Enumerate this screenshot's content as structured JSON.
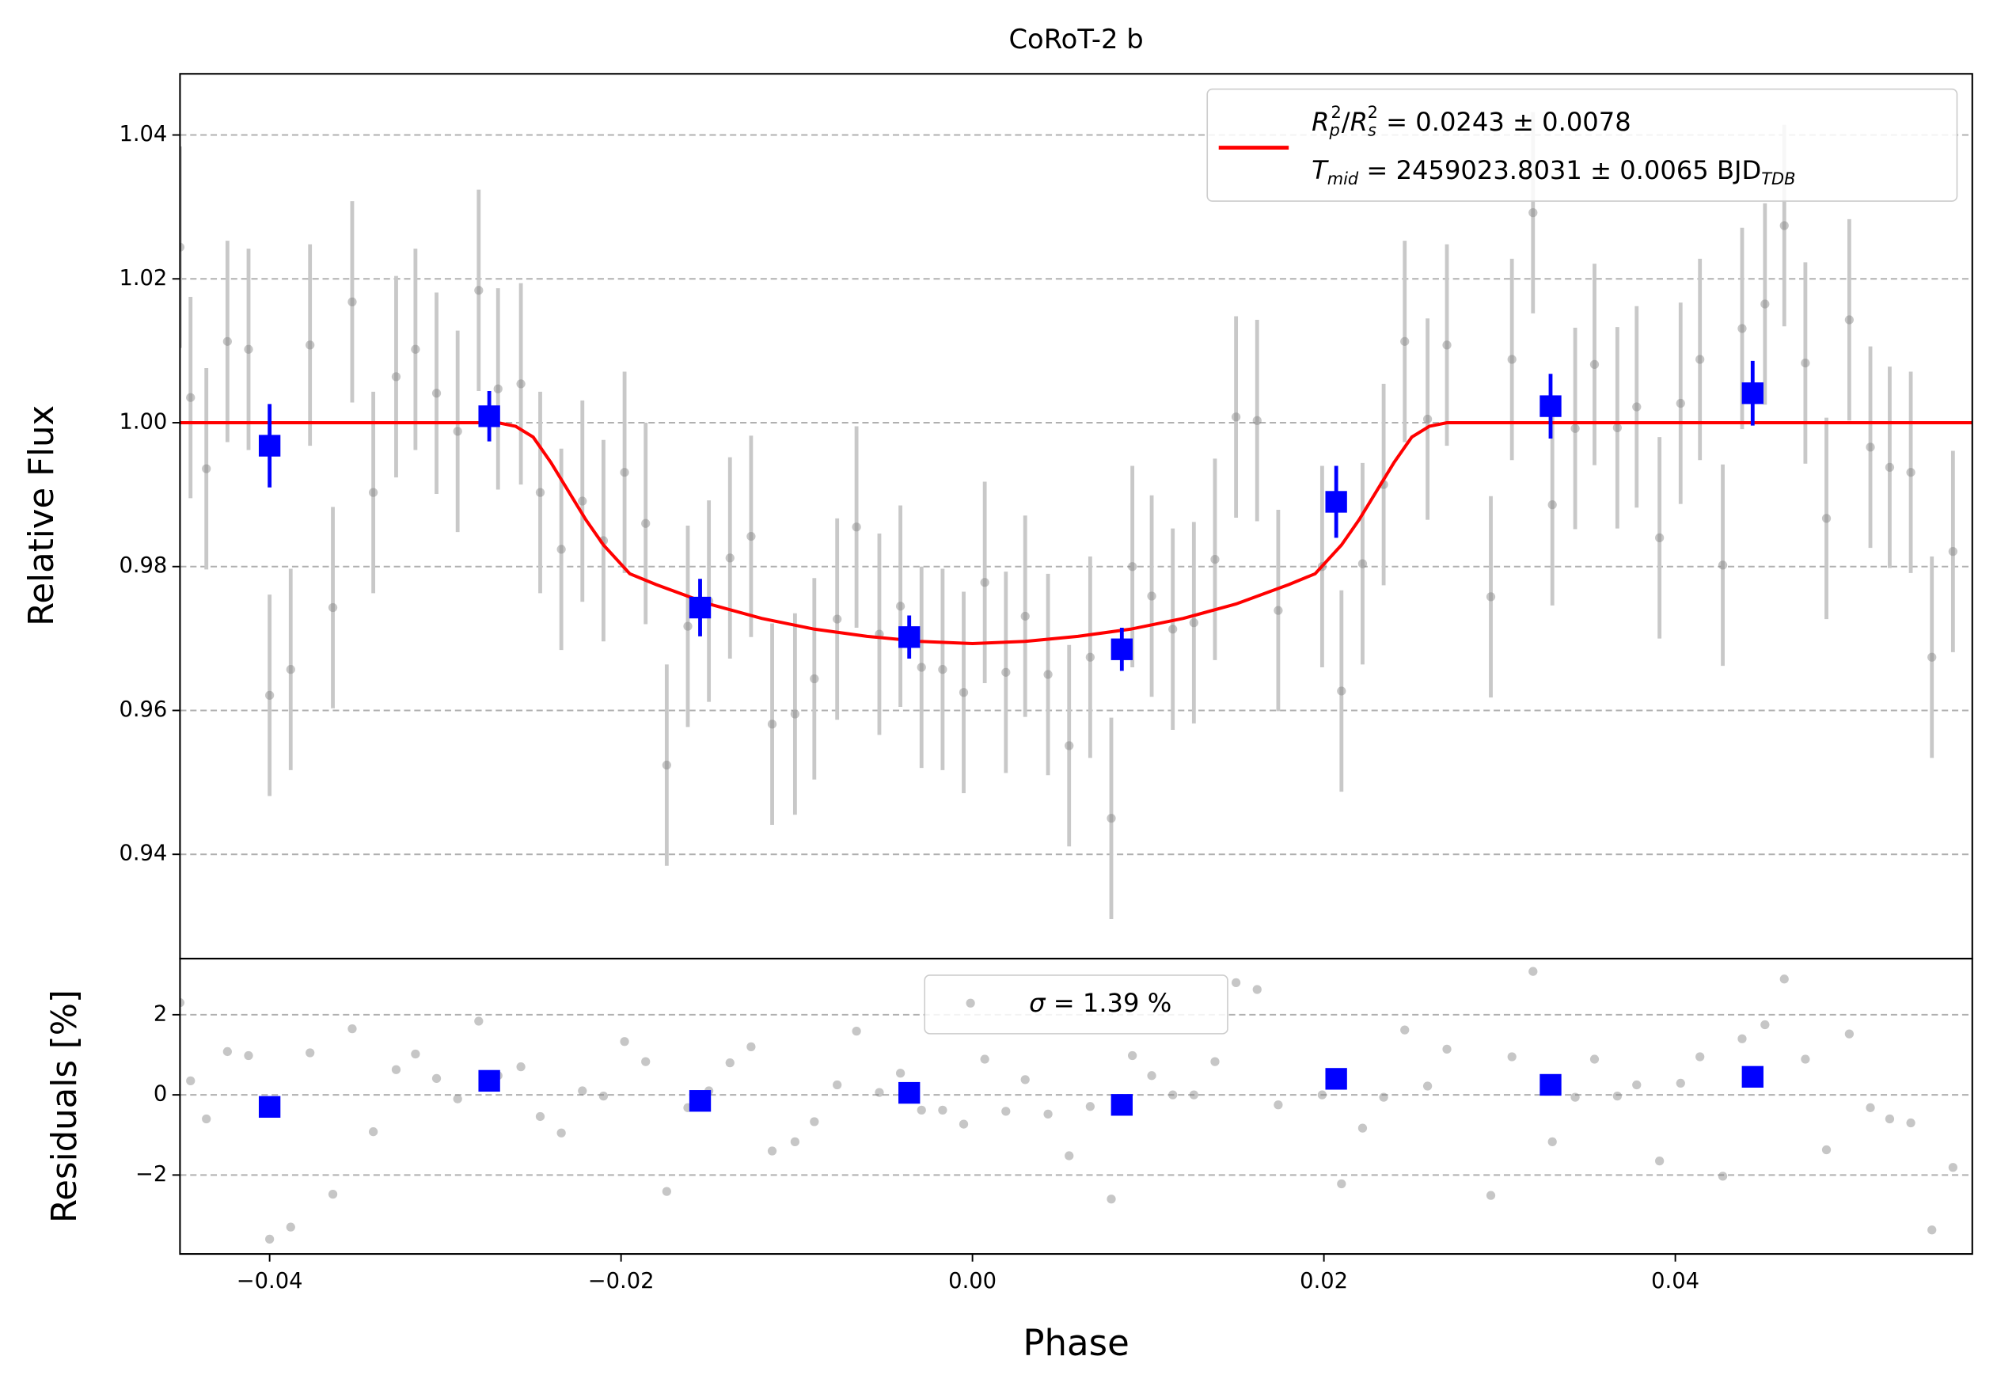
{
  "chart_data": [
    {
      "type": "scatter",
      "title": "CoRoT-2 b",
      "ylabel": "Relative Flux",
      "xlim": [
        -0.0451,
        0.0569
      ],
      "ylim": [
        0.9255,
        1.0485
      ],
      "yticks": [
        0.94,
        0.96,
        0.98,
        {
          "value": 1.0,
          "label": "1.00"
        },
        1.02,
        1.04
      ],
      "grid": true,
      "legend_position": "upper right",
      "series": [
        {
          "color": "#808080",
          "error": 0.014,
          "x": [
            -0.0451,
            -0.0445,
            -0.0436,
            -0.0424,
            -0.0412,
            -0.04,
            -0.0388,
            -0.0377,
            -0.0364,
            -0.0353,
            -0.0341,
            -0.0328,
            -0.0317,
            -0.0305,
            -0.0293,
            -0.0281,
            -0.027,
            -0.0257,
            -0.0246,
            -0.0234,
            -0.0222,
            -0.021,
            -0.0198,
            -0.0186,
            -0.0174,
            -0.0162,
            -0.015,
            -0.0138,
            -0.0126,
            -0.0114,
            -0.0101,
            -0.009,
            -0.0077,
            -0.0066,
            -0.0053,
            -0.0041,
            -0.0029,
            -0.0017,
            -0.0005,
            0.0007,
            0.0019,
            0.003,
            0.0043,
            0.0055,
            0.0067,
            0.0079,
            0.0091,
            0.0102,
            0.0114,
            0.0126,
            0.0138,
            0.015,
            0.0162,
            0.0174,
            0.0199,
            0.021,
            0.0222,
            0.0234,
            0.0246,
            0.0259,
            0.027,
            0.0295,
            0.0307,
            0.0319,
            0.033,
            0.0343,
            0.0354,
            0.0367,
            0.0378,
            0.0391,
            0.0403,
            0.0414,
            0.0427,
            0.0438,
            0.0451,
            0.0462,
            0.0474,
            0.0486,
            0.0499,
            0.0511,
            0.0522,
            0.0534,
            0.0546,
            0.0558
          ],
          "values": [
            1.0244,
            1.0035,
            0.9936,
            1.0113,
            1.0102,
            0.9621,
            0.9657,
            1.0108,
            0.9743,
            1.0168,
            0.9903,
            1.0064,
            1.0102,
            1.0041,
            0.9988,
            1.0184,
            1.0047,
            1.0054,
            0.9903,
            0.9824,
            0.9891,
            0.9836,
            0.9931,
            0.986,
            0.9524,
            0.9717,
            0.9752,
            0.9812,
            0.9842,
            0.9581,
            0.9595,
            0.9644,
            0.9727,
            0.9855,
            0.9706,
            0.9745,
            0.966,
            0.9657,
            0.9625,
            0.9778,
            0.9653,
            0.9731,
            0.965,
            0.9551,
            0.9674,
            0.945,
            0.98,
            0.9759,
            0.9713,
            0.9722,
            0.981,
            1.0008,
            1.0003,
            0.9739,
            0.98,
            0.9627,
            0.9804,
            0.9914,
            1.0113,
            1.0005,
            1.0108,
            0.9758,
            1.0088,
            1.0292,
            0.9886,
            0.9992,
            1.0081,
            0.9993,
            1.0022,
            0.984,
            1.0027,
            1.0088,
            0.9802,
            1.0131,
            1.0165,
            1.0274,
            1.0083,
            0.9867,
            1.0143,
            0.9966,
            0.9938,
            0.9931,
            0.9674,
            0.9821
          ]
        },
        {
          "color": "#0000ff",
          "x": [
            -0.04,
            -0.0275,
            -0.0155,
            -0.0036,
            0.0085,
            0.0207,
            0.0329,
            0.0444
          ],
          "values": [
            0.9968,
            1.0009,
            0.9743,
            0.9702,
            0.9685,
            0.989,
            1.0023,
            1.0041
          ],
          "errors": [
            0.0058,
            0.0035,
            0.004,
            0.003,
            0.003,
            0.005,
            0.0045,
            0.0045
          ]
        },
        {
          "type": "line",
          "color": "#ff0000",
          "name": [
            [
              "R",
              "p",
              "2",
              "/",
              "R",
              "s",
              "2",
              " = 0.0243 ± 0.0078"
            ],
            [
              "T",
              "mid",
              " = 2459023.8031 ± 0.0065 BJD",
              "TDB"
            ]
          ],
          "x": [
            -0.0451,
            -0.027,
            -0.026,
            -0.025,
            -0.024,
            -0.023,
            -0.022,
            -0.021,
            -0.0195,
            -0.018,
            -0.015,
            -0.012,
            -0.009,
            -0.006,
            -0.003,
            0,
            0.003,
            0.006,
            0.009,
            0.012,
            0.015,
            0.018,
            0.0195,
            0.021,
            0.022,
            0.023,
            0.024,
            0.025,
            0.026,
            0.027,
            0.0569
          ],
          "values": [
            1,
            1,
            0.9995,
            0.998,
            0.9945,
            0.9905,
            0.9865,
            0.983,
            0.979,
            0.9775,
            0.9748,
            0.9728,
            0.9713,
            0.9703,
            0.9696,
            0.9693,
            0.9696,
            0.9703,
            0.9713,
            0.9728,
            0.9748,
            0.9775,
            0.979,
            0.983,
            0.9865,
            0.9905,
            0.9945,
            0.998,
            0.9995,
            1,
            1
          ]
        }
      ]
    },
    {
      "type": "scatter",
      "ylabel": "Residuals [%]",
      "xlabel": "Phase",
      "xlim": [
        -0.0451,
        0.0569
      ],
      "ylim": [
        -3.97,
        3.4
      ],
      "xticks": [
        {
          "value": -0.04,
          "label": "−0.04"
        },
        {
          "value": -0.02,
          "label": "−0.02"
        },
        {
          "value": 0,
          "label": "0.00"
        },
        0.02,
        0.04
      ],
      "yticks": [
        {
          "value": -2,
          "label": "−2"
        },
        0,
        2
      ],
      "grid": true,
      "legend_position": "upper center",
      "series": [
        {
          "color": "#808080",
          "name": [
            "σ",
            " = 1.39 %"
          ],
          "x": [
            -0.0451,
            -0.0445,
            -0.0436,
            -0.0424,
            -0.0412,
            -0.04,
            -0.0388,
            -0.0377,
            -0.0364,
            -0.0353,
            -0.0341,
            -0.0328,
            -0.0317,
            -0.0305,
            -0.0293,
            -0.0281,
            -0.027,
            -0.0257,
            -0.0246,
            -0.0234,
            -0.0222,
            -0.021,
            -0.0198,
            -0.0186,
            -0.0174,
            -0.0162,
            -0.015,
            -0.0138,
            -0.0126,
            -0.0114,
            -0.0101,
            -0.009,
            -0.0077,
            -0.0066,
            -0.0053,
            -0.0041,
            -0.0029,
            -0.0017,
            -0.0005,
            0.0007,
            0.0019,
            0.003,
            0.0043,
            0.0055,
            0.0067,
            0.0079,
            0.0091,
            0.0102,
            0.0114,
            0.0126,
            0.0138,
            0.015,
            0.0162,
            0.0174,
            0.0199,
            0.021,
            0.0222,
            0.0234,
            0.0246,
            0.0259,
            0.027,
            0.0295,
            0.0307,
            0.0319,
            0.033,
            0.0343,
            0.0354,
            0.0367,
            0.0378,
            0.0391,
            0.0403,
            0.0414,
            0.0427,
            0.0438,
            0.0451,
            0.0462,
            0.0474,
            0.0486,
            0.0499,
            0.0511,
            0.0522,
            0.0534,
            0.0546,
            0.0558
          ],
          "values": [
            2.3,
            0.35,
            -0.6,
            1.08,
            0.98,
            -3.6,
            -3.3,
            1.05,
            -2.48,
            1.65,
            -0.92,
            0.63,
            1.02,
            0.41,
            -0.1,
            1.84,
            0.48,
            0.7,
            -0.54,
            -0.95,
            0.1,
            -0.03,
            1.33,
            0.83,
            -2.41,
            -0.32,
            0.1,
            0.8,
            1.2,
            -1.4,
            -1.17,
            -0.67,
            0.25,
            1.59,
            0.06,
            0.54,
            -0.38,
            -0.38,
            -0.73,
            0.89,
            -0.41,
            0.38,
            -0.48,
            -1.52,
            -0.29,
            -2.6,
            0.98,
            0.48,
            0,
            0,
            0.83,
            2.8,
            2.63,
            -0.25,
            0,
            -2.22,
            -0.83,
            -0.06,
            1.62,
            0.22,
            1.14,
            -2.51,
            0.95,
            3.08,
            -1.17,
            -0.06,
            0.89,
            -0.03,
            0.25,
            -1.65,
            0.29,
            0.95,
            -2.03,
            1.4,
            1.75,
            2.89,
            0.89,
            -1.37,
            1.52,
            -0.32,
            -0.6,
            -0.7,
            -3.37,
            -1.81
          ]
        },
        {
          "color": "#0000ff",
          "x": [
            -0.04,
            -0.0275,
            -0.0155,
            -0.0036,
            0.0085,
            0.0207,
            0.0329,
            0.0444
          ],
          "values": [
            -0.3,
            0.35,
            -0.15,
            0.05,
            -0.25,
            0.4,
            0.25,
            0.45
          ]
        }
      ]
    }
  ]
}
